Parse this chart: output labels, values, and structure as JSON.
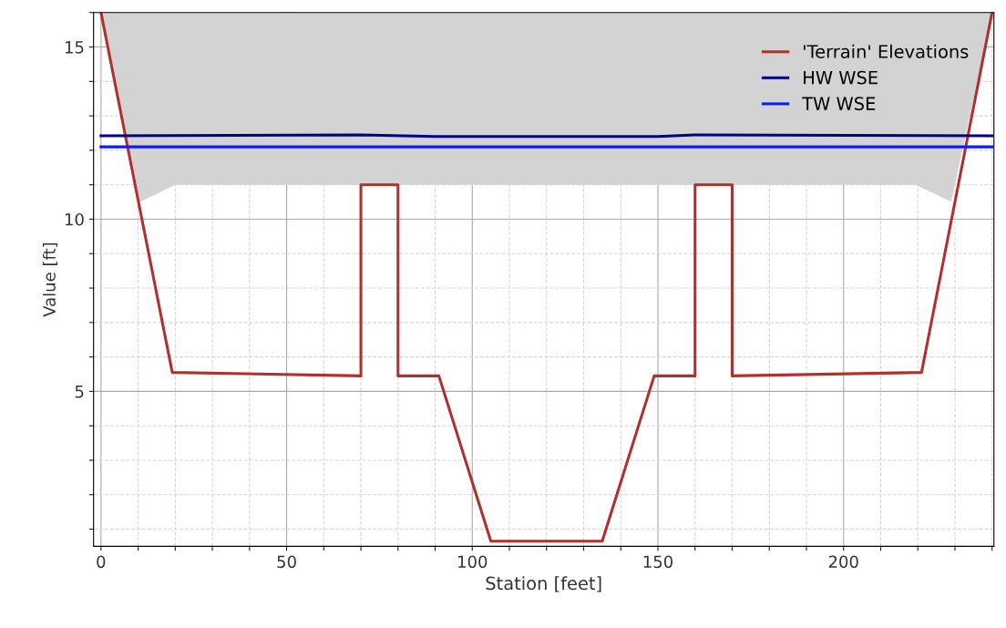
{
  "chart_data": {
    "type": "line",
    "xlabel": "Station [feet]",
    "ylabel": "Value [ft]",
    "xlim": [
      -2,
      240.5
    ],
    "ylim": [
      0.5,
      16
    ],
    "xticks": [
      0,
      {
        "value": 10,
        "label": null
      },
      {
        "value": 20,
        "label": null
      },
      {
        "value": 30,
        "label": null
      },
      {
        "value": 40,
        "label": null
      },
      50,
      {
        "value": 60,
        "label": null
      },
      {
        "value": 70,
        "label": null
      },
      {
        "value": 80,
        "label": null
      },
      {
        "value": 90,
        "label": null
      },
      100,
      {
        "value": 110,
        "label": null
      },
      {
        "value": 120,
        "label": null
      },
      {
        "value": 130,
        "label": null
      },
      {
        "value": 140,
        "label": null
      },
      150,
      {
        "value": 160,
        "label": null
      },
      {
        "value": 170,
        "label": null
      },
      {
        "value": 180,
        "label": null
      },
      {
        "value": 190,
        "label": null
      },
      200,
      {
        "value": 210,
        "label": null
      },
      {
        "value": 220,
        "label": null
      },
      {
        "value": 230,
        "label": null
      },
      {
        "value": 240,
        "label": null
      }
    ],
    "yticks": [
      {
        "value": 1,
        "label": null
      },
      {
        "value": 2,
        "label": null
      },
      {
        "value": 3,
        "label": null
      },
      {
        "value": 4,
        "label": null
      },
      5,
      {
        "value": 6,
        "label": null
      },
      {
        "value": 7,
        "label": null
      },
      {
        "value": 8,
        "label": null
      },
      {
        "value": 9,
        "label": null
      },
      10,
      {
        "value": 11,
        "label": null
      },
      {
        "value": 12,
        "label": null
      },
      {
        "value": 13,
        "label": null
      },
      {
        "value": 14,
        "label": null
      },
      15,
      {
        "value": 16,
        "label": null
      }
    ],
    "grid": true,
    "legend": "top right",
    "series": [
      {
        "type": "area",
        "color": "#d3d3d3",
        "x": [
          0,
          10.5,
          20,
          219.5,
          229,
          240
        ],
        "values": [
          16,
          10.5,
          11,
          11,
          10.5,
          16
        ]
      },
      {
        "name": "'Terrain' Elevations",
        "color": "#b03030",
        "x": [
          0,
          19.2,
          70,
          70,
          80,
          80,
          91,
          105,
          135,
          149,
          160,
          160,
          170,
          170,
          221,
          240
        ],
        "values": [
          16,
          5.55,
          5.45,
          11,
          11,
          5.45,
          5.45,
          0.65,
          0.65,
          5.45,
          5.45,
          11,
          11,
          5.45,
          5.55,
          16
        ]
      },
      {
        "name": "HW WSE",
        "color": "#00008b",
        "x": [
          0,
          70,
          90,
          150,
          160,
          240
        ],
        "values": [
          12.42,
          12.45,
          12.4,
          12.4,
          12.45,
          12.42
        ]
      },
      {
        "name": "TW WSE",
        "color": "#0a1ef0",
        "x": [
          0,
          240
        ],
        "values": [
          12.1,
          12.1
        ]
      }
    ]
  }
}
